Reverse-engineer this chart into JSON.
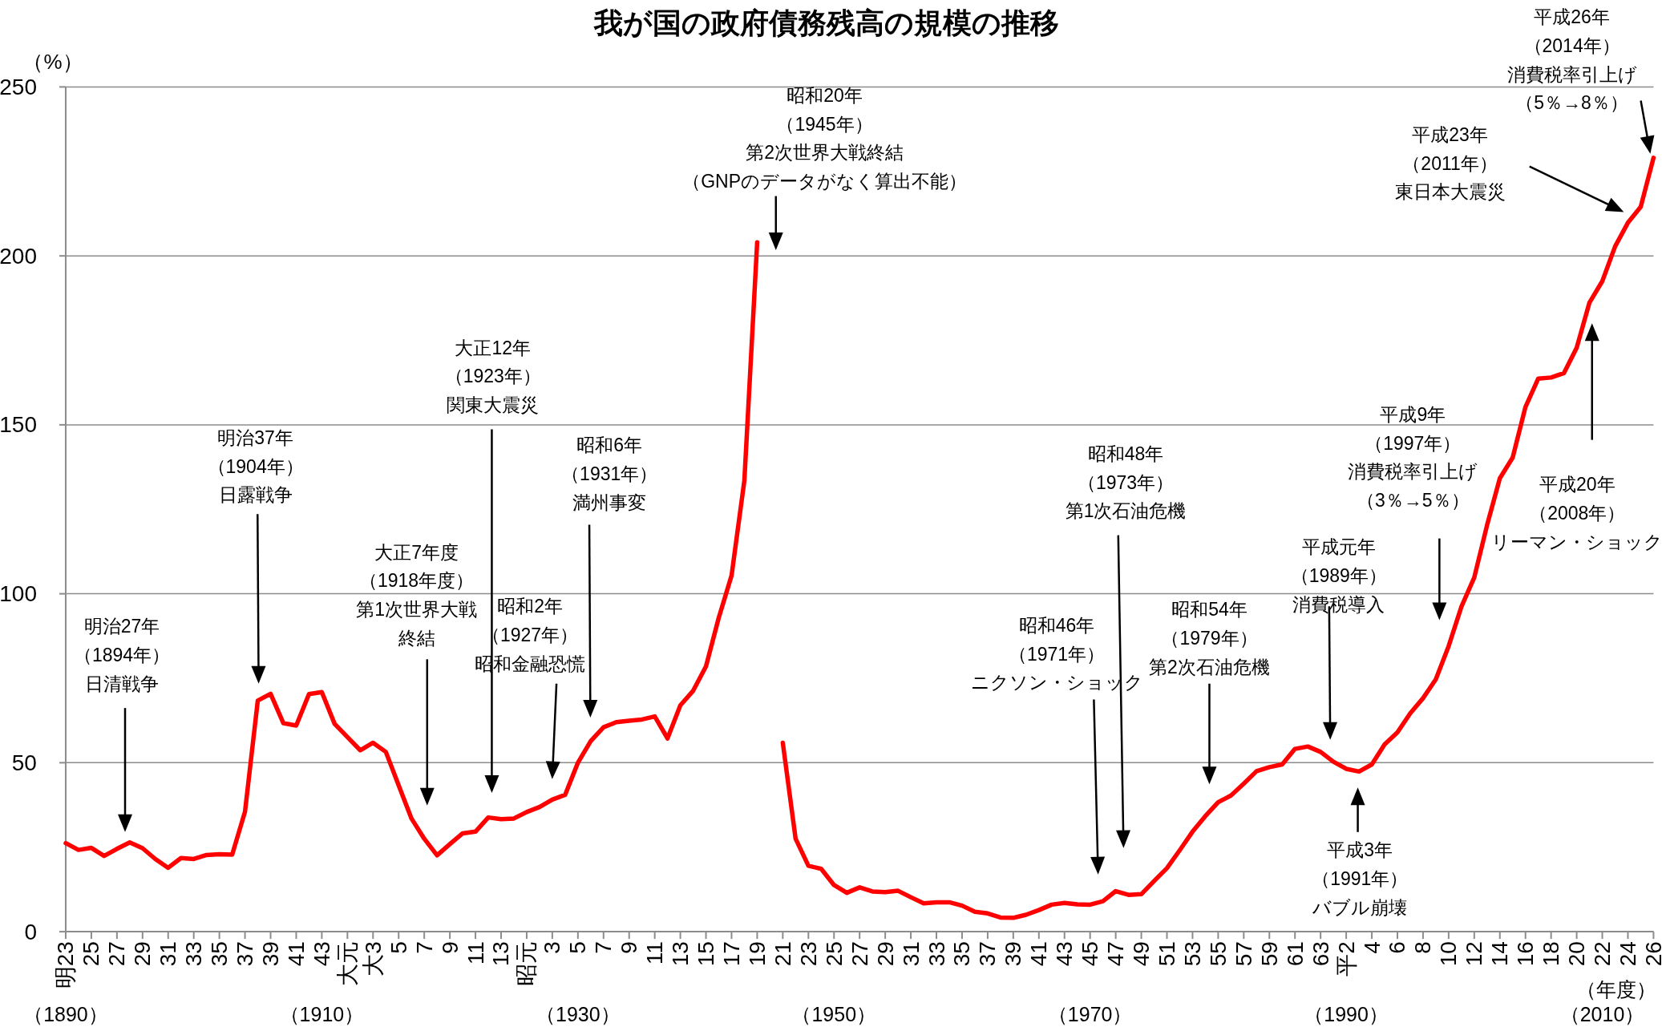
{
  "chart_data": {
    "type": "line",
    "title": "我が国の政府債務残高の規模の推移",
    "ylabel": "（%）",
    "xlabel": "（年度）",
    "color": "#ff0000",
    "grid": "y",
    "ylim": [
      0,
      250
    ],
    "yticks": [
      0,
      50,
      100,
      150,
      200,
      250
    ],
    "categories": [
      "明23",
      null,
      "25",
      null,
      "27",
      null,
      "29",
      null,
      "31",
      null,
      "33",
      null,
      "35",
      null,
      "37",
      null,
      "39",
      null,
      "41",
      null,
      "43",
      null,
      "大元",
      null,
      "大3",
      null,
      "5",
      null,
      "7",
      null,
      "9",
      null,
      "11",
      null,
      "13",
      null,
      "昭元",
      null,
      "3",
      null,
      "5",
      null,
      "7",
      null,
      "9",
      null,
      "11",
      null,
      "13",
      null,
      "15",
      null,
      "17",
      null,
      "19",
      null,
      "21",
      null,
      "23",
      null,
      "25",
      null,
      "27",
      null,
      "29",
      null,
      "31",
      null,
      "33",
      null,
      "35",
      null,
      "37",
      null,
      "39",
      null,
      "41",
      null,
      "43",
      null,
      "45",
      null,
      "47",
      null,
      "49",
      null,
      "51",
      null,
      "53",
      null,
      "55",
      null,
      "57",
      null,
      "59",
      null,
      "61",
      null,
      "63",
      null,
      "平2",
      null,
      "4",
      null,
      "6",
      null,
      "8",
      null,
      "10",
      null,
      "12",
      null,
      "14",
      null,
      "16",
      null,
      "18",
      null,
      "20",
      null,
      "22",
      null,
      "24",
      null,
      "26"
    ],
    "values": [
      26.2,
      24.2,
      24.8,
      22.4,
      24.5,
      26.4,
      24.7,
      21.5,
      18.9,
      21.8,
      21.5,
      22.7,
      22.9,
      22.8,
      35.5,
      68.4,
      70.4,
      61.7,
      61.0,
      70.3,
      70.9,
      61.5,
      57.6,
      53.7,
      55.9,
      53.2,
      43.3,
      33.5,
      27.5,
      22.6,
      25.9,
      29.1,
      29.6,
      33.8,
      33.3,
      33.5,
      35.4,
      36.9,
      39.1,
      40.5,
      50.0,
      56.4,
      60.5,
      62.0,
      62.4,
      62.8,
      63.7,
      57.2,
      67.0,
      71.3,
      78.5,
      92.9,
      105.4,
      133.5,
      204,
      null,
      55.9,
      27.5,
      19.5,
      18.6,
      13.8,
      11.5,
      13.1,
      11.9,
      11.7,
      12.1,
      10.2,
      8.4,
      8.7,
      8.7,
      7.7,
      5.9,
      5.4,
      4.2,
      4.1,
      5.0,
      6.4,
      8.0,
      8.5,
      8.1,
      8.0,
      9.0,
      12.0,
      10.9,
      11.1,
      15.0,
      18.8,
      24.1,
      29.6,
      34.2,
      38.3,
      40.3,
      43.8,
      47.5,
      48.7,
      49.5,
      54.1,
      54.8,
      53.2,
      50.3,
      48.2,
      47.4,
      49.5,
      55.4,
      59.0,
      64.6,
      69.1,
      74.7,
      84.5,
      96.2,
      104.8,
      120.3,
      134.2,
      140.3,
      155.3,
      163.7,
      164.0,
      165.3,
      172.8,
      186.2,
      192.5,
      202.8,
      209.8,
      214.5,
      229
    ],
    "annotations": [
      "明治27年（1894年）日清戦争",
      "明治37年（1904年）日露戦争",
      "大正7年度（1918年度）第1次世界大戦終結",
      "大正12年（1923年）関東大震災",
      "昭和2年（1927年）昭和金融恐慌",
      "昭和6年（1931年）満州事変",
      "昭和20年（1945年）第2次世界大戦終結（GNPのデータがなく算出不能）",
      "昭和46年（1971年）ニクソン・ショック",
      "昭和48年（1973年）第1次石油危機",
      "昭和54年（1979年）第2次石油危機",
      "平成元年（1989年）消費税導入",
      "平成3年（1991年）バブル崩壊",
      "平成9年（1997年）消費税率引上げ（3％→5％）",
      "平成20年（2008年）リーマン・ショック",
      "平成23年（2011年）東日本大震災",
      "平成26年（2014年）消費税率引上げ（5％→8％）",
      "（1890）",
      "（1910）",
      "（1930）",
      "（1950）",
      "（1970）",
      "（1990）",
      "（2010）"
    ]
  }
}
